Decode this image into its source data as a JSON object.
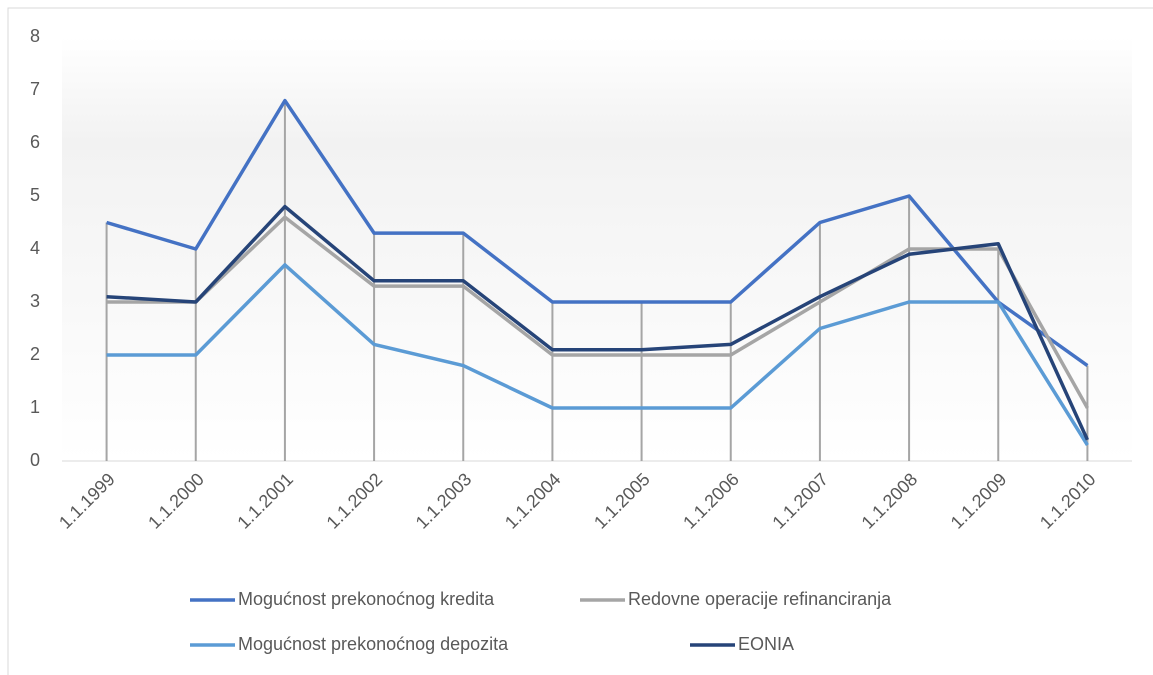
{
  "chart_data": {
    "type": "line",
    "categories": [
      "1.1.1999",
      "1.1.2000",
      "1.1.2001",
      "1.1.2002",
      "1.1.2003",
      "1.1.2004",
      "1.1.2005",
      "1.1.2006",
      "1.1.2007",
      "1.1.2008",
      "1.1.2009",
      "1.1.2010"
    ],
    "series": [
      {
        "name": "Mogućnost prekonoćnog kredita",
        "color": "#4472c4",
        "values": [
          4.5,
          4,
          6.8,
          4.3,
          4.3,
          3,
          3,
          3,
          4.5,
          5,
          3,
          1.8
        ]
      },
      {
        "name": "Redovne operacije refinanciranja",
        "color": "#a5a5a5",
        "values": [
          3,
          3,
          4.6,
          3.3,
          3.3,
          2,
          2,
          2,
          3,
          4,
          4,
          1
        ]
      },
      {
        "name": "Mogućnost prekonoćnog depozita",
        "color": "#5b9bd5",
        "values": [
          2,
          2,
          3.7,
          2.2,
          1.8,
          1,
          1,
          1,
          2.5,
          3,
          3,
          0.3
        ]
      },
      {
        "name": "EONIA",
        "color": "#264478",
        "values": [
          3.1,
          3,
          4.8,
          3.4,
          3.4,
          2.1,
          2.1,
          2.2,
          3.1,
          3.9,
          4.1,
          0.4
        ]
      }
    ],
    "ylim": [
      0,
      8
    ],
    "yticks": [
      0,
      1,
      2,
      3,
      4,
      5,
      6,
      7,
      8
    ],
    "drop_lines": true,
    "legend": "bottom"
  }
}
